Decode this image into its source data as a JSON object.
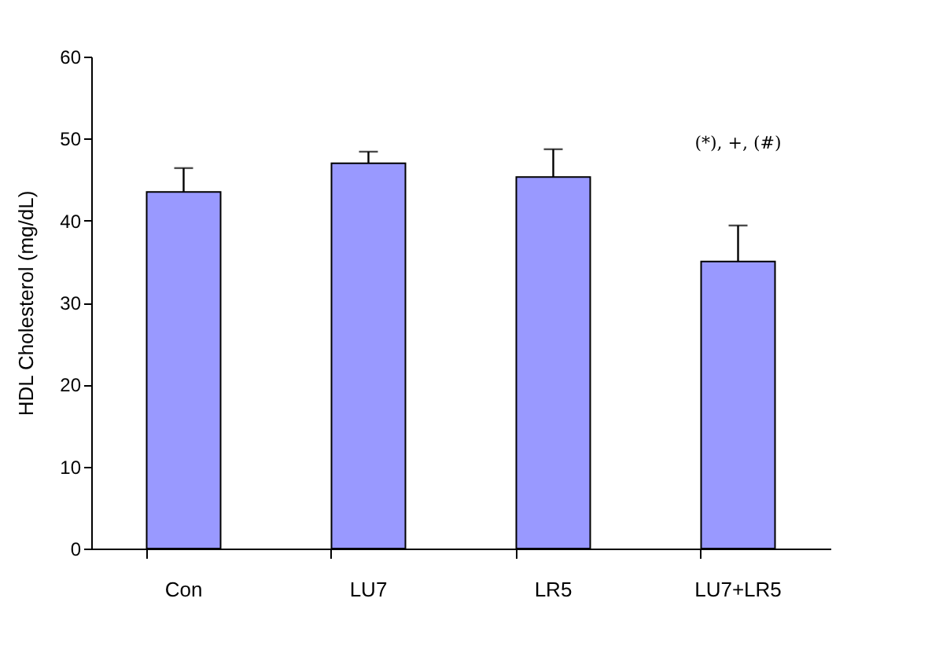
{
  "chart_data": {
    "type": "bar",
    "ylabel": "HDL Cholesterol (mg/dL)",
    "categories": [
      "Con",
      "LU7",
      "LR5",
      "LU7+LR5"
    ],
    "values": [
      43.5,
      47.0,
      45.3,
      35.0
    ],
    "errors": [
      [
        43.5,
        46.4
      ],
      [
        47.0,
        48.4
      ],
      [
        45.3,
        48.7
      ],
      [
        35.0,
        39.4
      ]
    ],
    "color": "#9999ff",
    "ylim": [
      0,
      60
    ],
    "yticks": [
      0,
      10,
      20,
      30,
      40,
      50,
      60
    ],
    "grid": false,
    "annotations": [
      "(*), +, (#)"
    ]
  }
}
